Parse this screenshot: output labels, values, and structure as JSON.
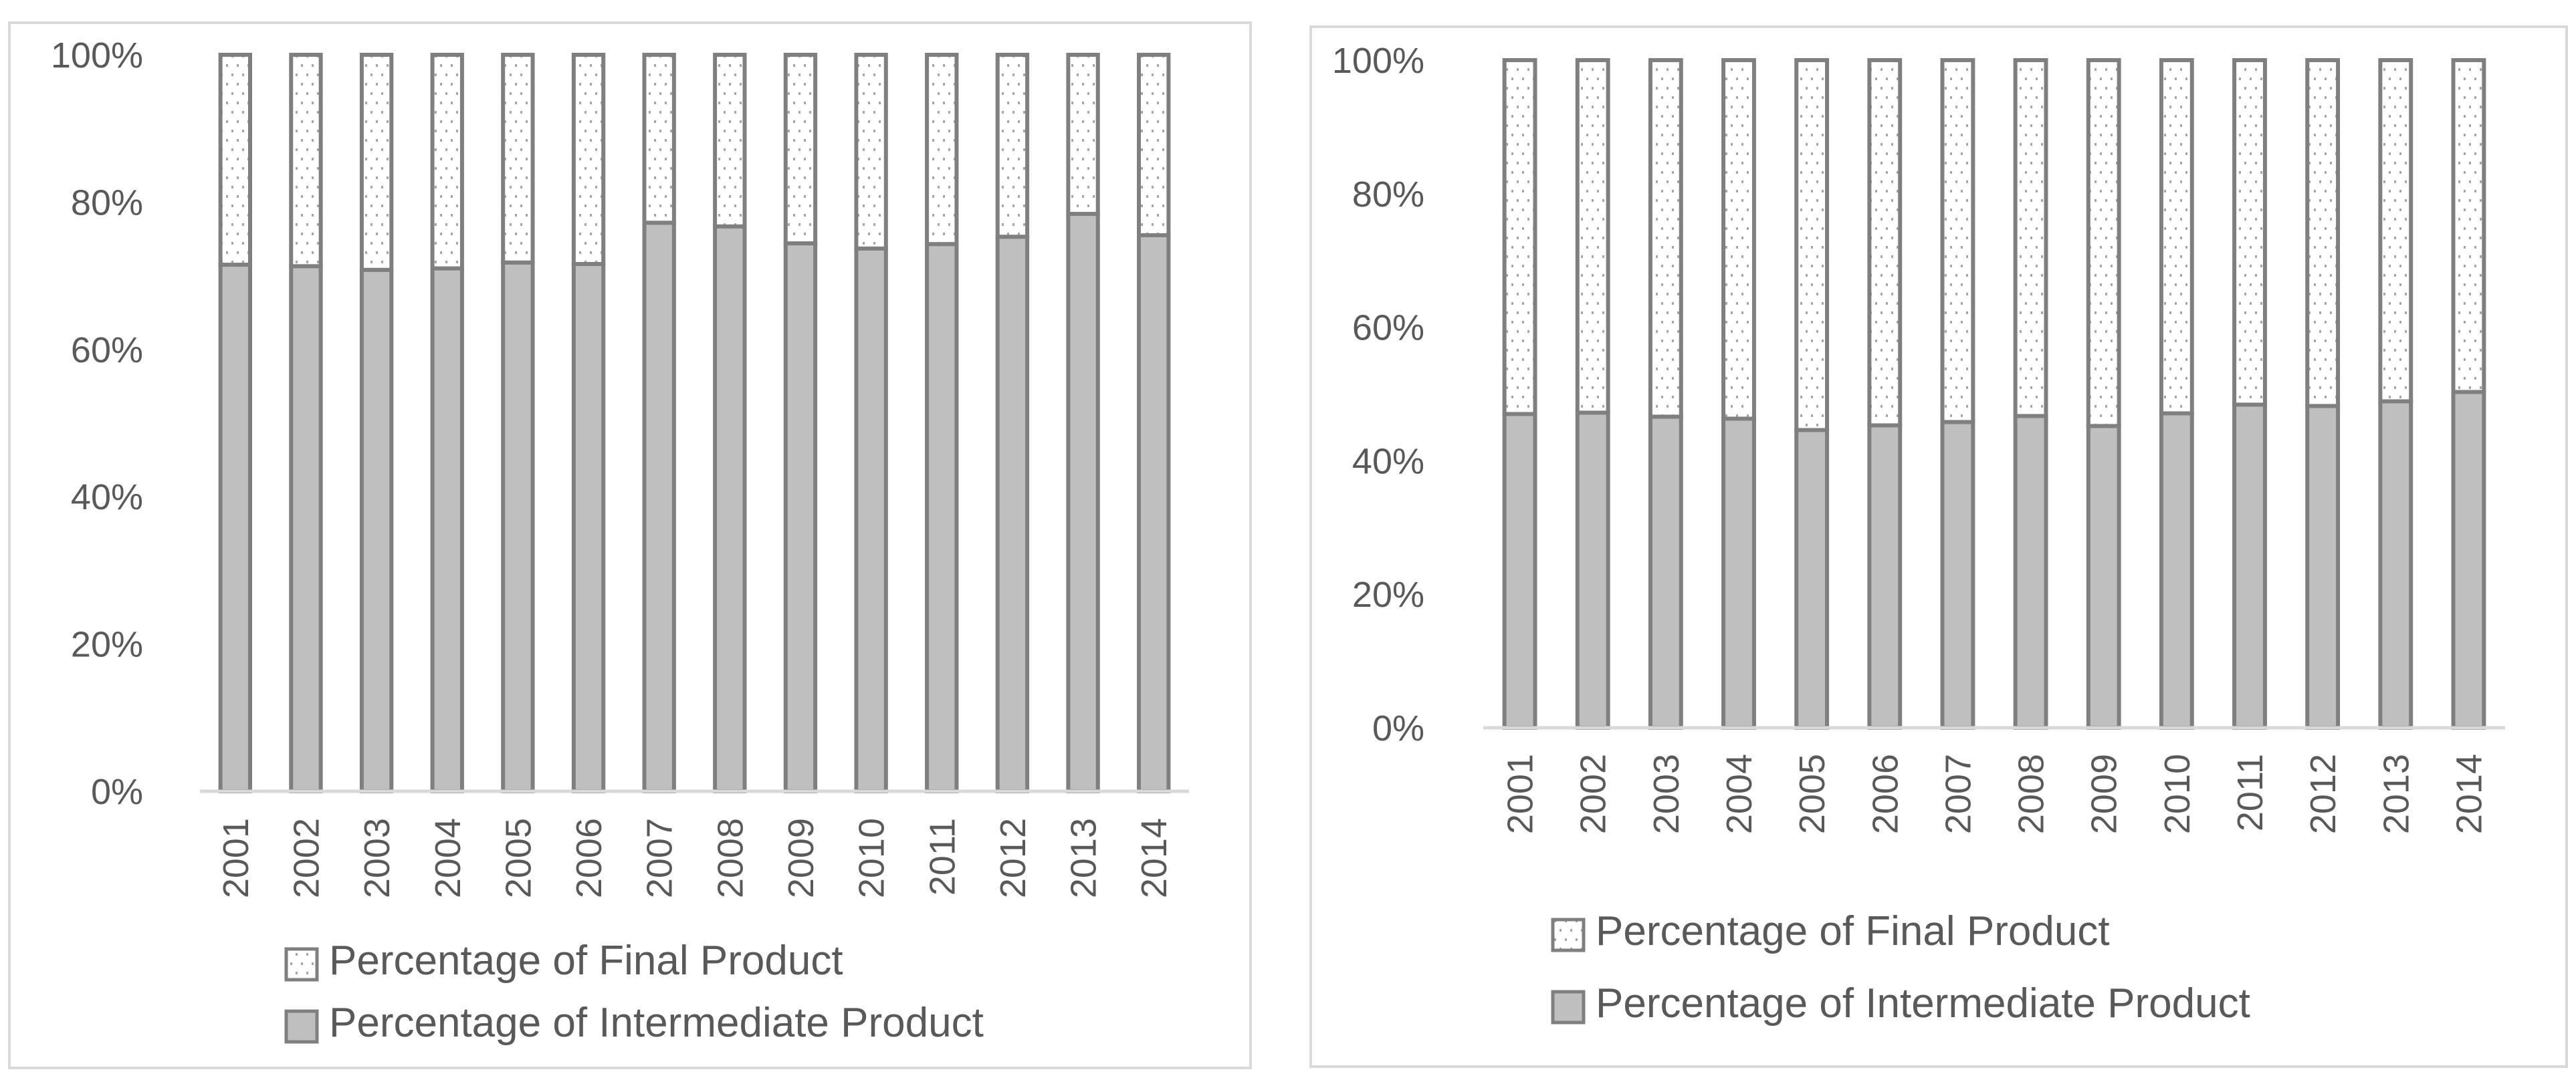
{
  "chart_data": [
    {
      "type": "bar",
      "stacked": true,
      "percent": true,
      "title": "",
      "xlabel": "",
      "ylabel": "",
      "ylim": [
        0,
        100
      ],
      "y_ticks": [
        "0%",
        "20%",
        "40%",
        "60%",
        "80%",
        "100%"
      ],
      "categories": [
        "2001",
        "2002",
        "2003",
        "2004",
        "2005",
        "2006",
        "2007",
        "2008",
        "2009",
        "2010",
        "2011",
        "2012",
        "2013",
        "2014"
      ],
      "series": [
        {
          "name": "Percentage of Intermediate Product",
          "values": [
            71.5,
            71.3,
            70.8,
            71.0,
            71.8,
            71.6,
            77.2,
            76.7,
            74.4,
            73.7,
            74.3,
            75.3,
            78.4,
            75.5
          ]
        },
        {
          "name": "Percentage of Final Product",
          "values": [
            28.5,
            28.7,
            29.2,
            29.0,
            28.2,
            28.4,
            22.8,
            23.3,
            25.6,
            26.3,
            25.7,
            24.7,
            21.6,
            24.5
          ]
        }
      ],
      "legend_order": [
        "Percentage of Final Product",
        "Percentage of Intermediate Product"
      ],
      "legend_position": "bottom",
      "colors": {
        "Percentage of Intermediate Product": "#bfbfbf",
        "Percentage of Final Product": "#ffffff",
        "bar_outline": "#7f7f7f",
        "dots": "#a6a6a6"
      }
    },
    {
      "type": "bar",
      "stacked": true,
      "percent": true,
      "title": "",
      "xlabel": "",
      "ylabel": "",
      "ylim": [
        0,
        100
      ],
      "y_ticks": [
        "0%",
        "20%",
        "40%",
        "60%",
        "80%",
        "100%"
      ],
      "categories": [
        "2001",
        "2002",
        "2003",
        "2004",
        "2005",
        "2006",
        "2007",
        "2008",
        "2009",
        "2010",
        "2011",
        "2012",
        "2013",
        "2014"
      ],
      "series": [
        {
          "name": "Percentage of Intermediate Product",
          "values": [
            47.0,
            47.2,
            46.6,
            46.3,
            44.6,
            45.3,
            45.8,
            46.7,
            45.2,
            47.1,
            48.4,
            48.2,
            48.9,
            50.3
          ]
        },
        {
          "name": "Percentage of Final Product",
          "values": [
            53.0,
            52.8,
            53.4,
            53.7,
            55.4,
            54.7,
            54.2,
            53.3,
            54.8,
            52.9,
            51.6,
            51.8,
            51.1,
            49.7
          ]
        }
      ],
      "legend_order": [
        "Percentage of Final Product",
        "Percentage of Intermediate Product"
      ],
      "legend_position": "bottom",
      "colors": {
        "Percentage of Intermediate Product": "#bfbfbf",
        "Percentage of Final Product": "#ffffff",
        "bar_outline": "#7f7f7f",
        "dots": "#a6a6a6"
      }
    }
  ]
}
